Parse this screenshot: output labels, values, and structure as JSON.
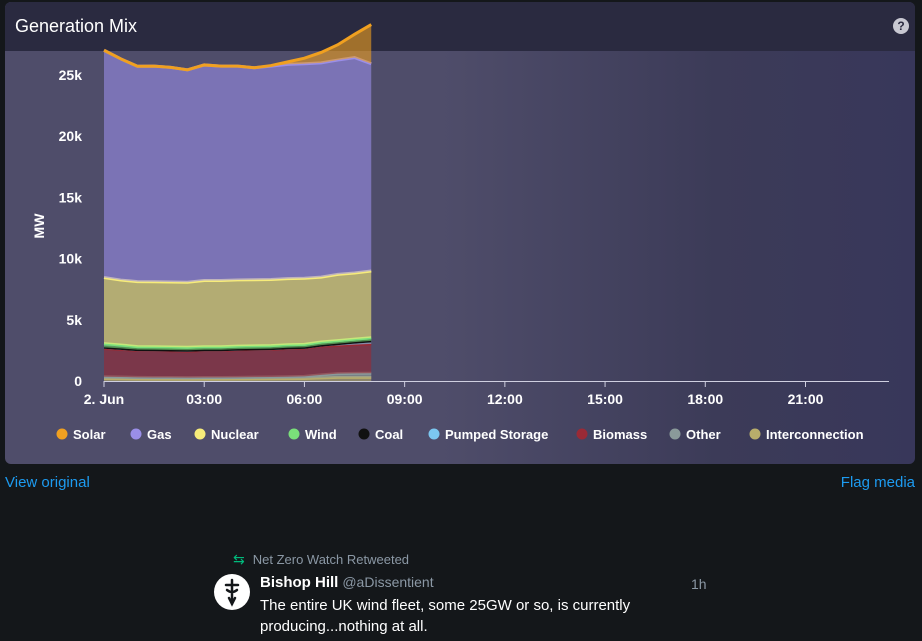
{
  "card": {
    "title": "Generation Mix",
    "help_icon": "help-icon"
  },
  "chart_data": {
    "type": "area",
    "title": "Generation Mix",
    "xlabel": "",
    "ylabel": "MW",
    "stacked": true,
    "x_ticks": [
      "2. Jun",
      "03:00",
      "06:00",
      "09:00",
      "12:00",
      "15:00",
      "18:00",
      "21:00"
    ],
    "y_ticks": [
      "0",
      "5k",
      "10k",
      "15k",
      "20k",
      "25k"
    ],
    "ylim": [
      0,
      28000
    ],
    "xlim_hours": [
      0,
      23.5
    ],
    "x": [
      "00:00",
      "00:30",
      "01:00",
      "01:30",
      "02:00",
      "02:30",
      "03:00",
      "03:30",
      "04:00",
      "04:30",
      "05:00",
      "05:30",
      "06:00",
      "06:30",
      "07:00",
      "07:30",
      "08:00"
    ],
    "series": [
      {
        "name": "Interconnection",
        "color": "#b8ad6b",
        "values": [
          200,
          180,
          160,
          150,
          150,
          140,
          150,
          150,
          160,
          170,
          180,
          190,
          200,
          250,
          300,
          300,
          300
        ]
      },
      {
        "name": "Other",
        "color": "#8a9a9a",
        "values": [
          150,
          150,
          140,
          140,
          140,
          140,
          140,
          140,
          140,
          150,
          150,
          160,
          180,
          250,
          300,
          320,
          330
        ]
      },
      {
        "name": "Biomass",
        "color": "#9a2a36",
        "values": [
          2300,
          2250,
          2200,
          2200,
          2180,
          2150,
          2200,
          2200,
          2250,
          2250,
          2250,
          2300,
          2300,
          2350,
          2300,
          2350,
          2400
        ]
      },
      {
        "name": "Pumped Storage",
        "color": "#7cc7f0",
        "values": [
          100,
          80,
          60,
          60,
          60,
          80,
          60,
          60,
          50,
          50,
          60,
          60,
          60,
          80,
          150,
          200,
          250
        ]
      },
      {
        "name": "Coal",
        "color": "#111111",
        "values": [
          0,
          0,
          0,
          0,
          0,
          0,
          0,
          0,
          0,
          0,
          0,
          0,
          0,
          0,
          0,
          0,
          0
        ]
      },
      {
        "name": "Wind",
        "color": "#7ae07a",
        "values": [
          300,
          280,
          250,
          250,
          250,
          250,
          250,
          250,
          250,
          250,
          250,
          250,
          250,
          250,
          250,
          250,
          250
        ]
      },
      {
        "name": "Nuclear",
        "color": "#f7ec7a",
        "values": [
          5400,
          5300,
          5300,
          5300,
          5300,
          5300,
          5400,
          5400,
          5400,
          5400,
          5400,
          5400,
          5400,
          5300,
          5400,
          5400,
          5450
        ]
      },
      {
        "name": "Gas",
        "color": "#9a8ee8",
        "values": [
          18550,
          18060,
          17580,
          17600,
          17520,
          17340,
          17600,
          17500,
          17450,
          17300,
          17410,
          17490,
          17510,
          17490,
          17500,
          17580,
          16920
        ]
      },
      {
        "name": "Solar",
        "color": "#f0a020",
        "values": [
          0,
          0,
          0,
          0,
          0,
          0,
          0,
          0,
          0,
          0,
          50,
          200,
          450,
          850,
          1250,
          1900,
          3200
        ]
      }
    ],
    "legend": [
      "Solar",
      "Gas",
      "Nuclear",
      "Wind",
      "Coal",
      "Pumped Storage",
      "Biomass",
      "Other",
      "Interconnection"
    ],
    "legend_colors": [
      "#f0a020",
      "#9a8ee8",
      "#f7ec7a",
      "#7ae07a",
      "#111111",
      "#7cc7f0",
      "#9a2a36",
      "#8a9a9a",
      "#b8ad6b"
    ],
    "legend_placement": "bottom",
    "grid": false
  },
  "links": {
    "view_original": "View original",
    "flag_media": "Flag media"
  },
  "tweet": {
    "retweeted_by": "Net Zero Watch Retweeted",
    "author_name": "Bishop Hill",
    "author_handle": "@aDissentient",
    "time": "1h",
    "text": "The entire UK wind fleet, some 25GW or so, is currently producing...nothing at all."
  }
}
